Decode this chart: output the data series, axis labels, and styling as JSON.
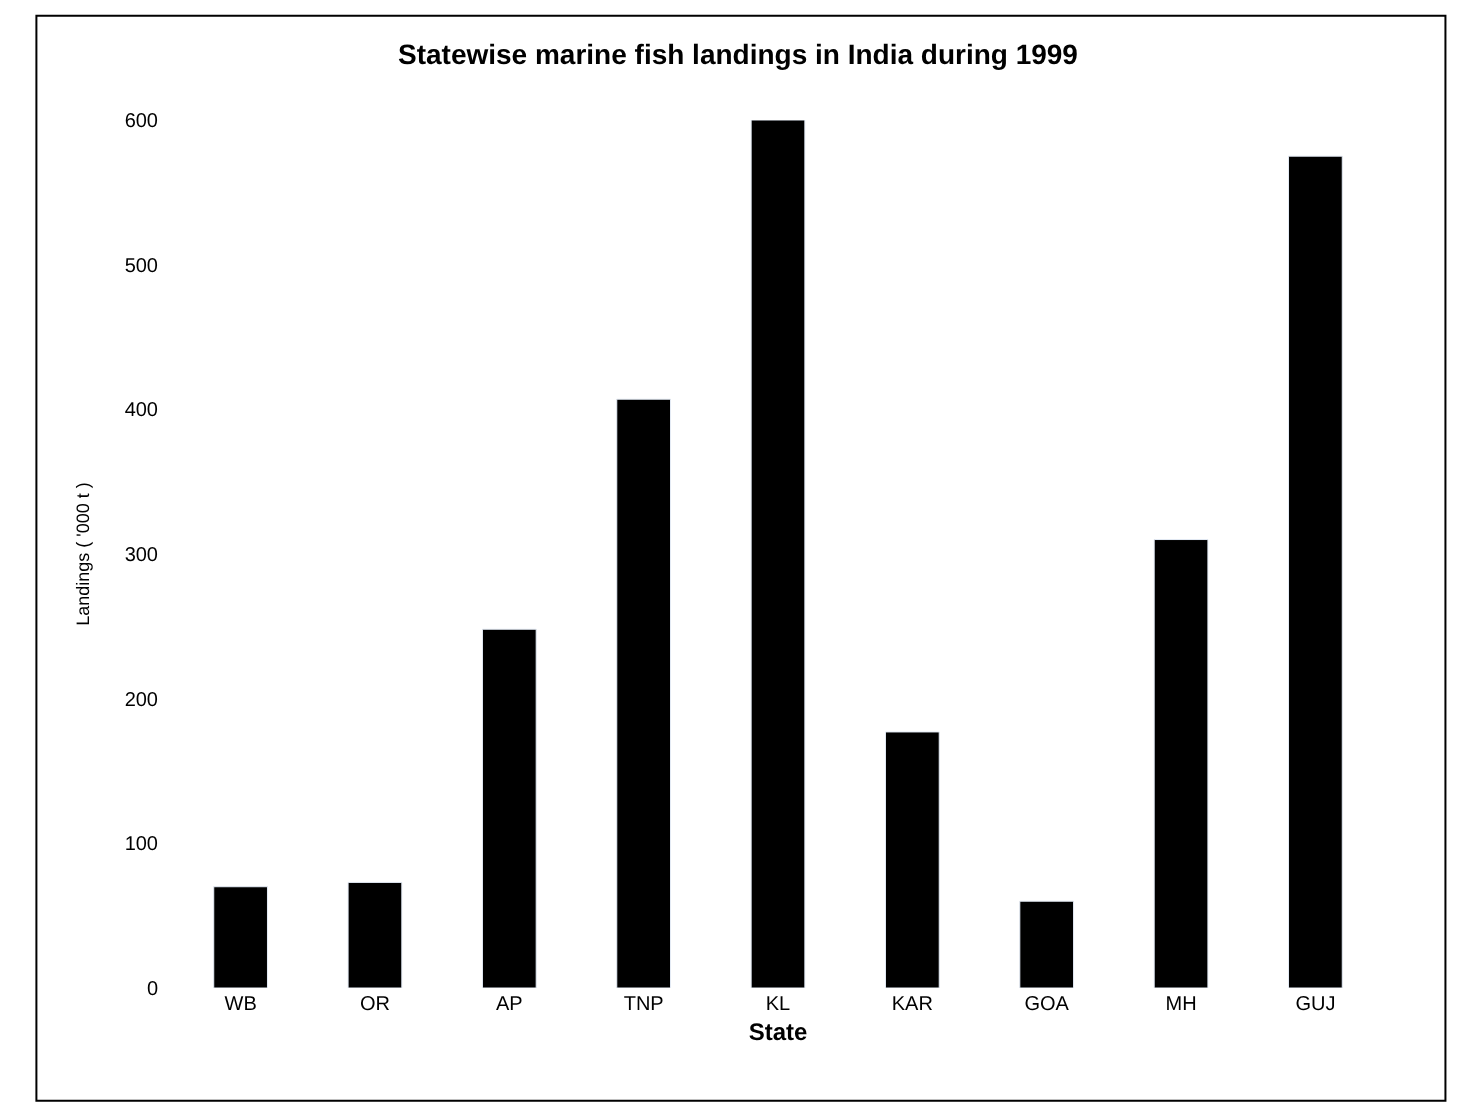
{
  "chart_data": {
    "type": "bar",
    "title": "Statewise marine fish landings in India during 1999",
    "xlabel": "State",
    "ylabel": "Landings ( '000 t )",
    "categories": [
      "WB",
      "OR",
      "AP",
      "TNP",
      "KL",
      "KAR",
      "GOA",
      "MH",
      "GUJ"
    ],
    "values": [
      70,
      73,
      248,
      407,
      600,
      177,
      60,
      310,
      575
    ],
    "color": "#000000",
    "ylim": [
      0,
      600
    ],
    "yticks": [
      0,
      100,
      200,
      300,
      400,
      500,
      600
    ]
  }
}
